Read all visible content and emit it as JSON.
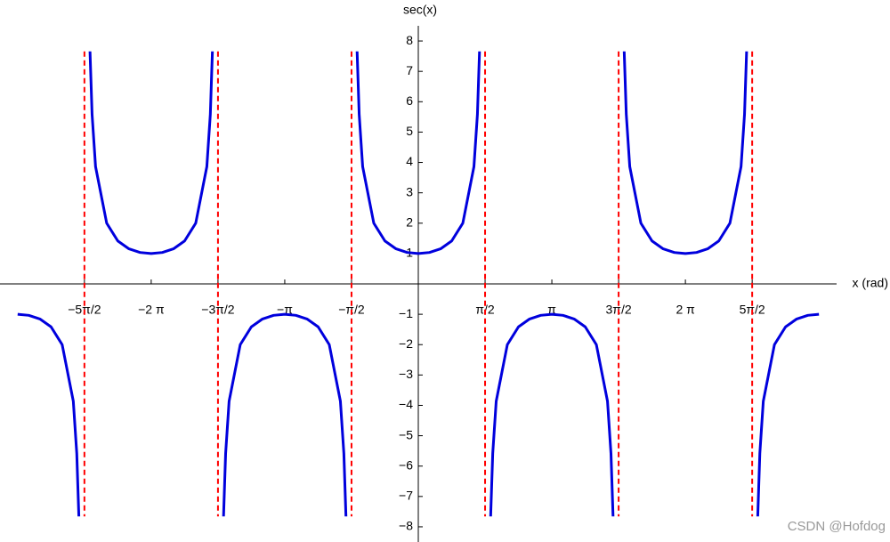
{
  "chart_data": {
    "type": "line",
    "x_label": "x (rad)",
    "y_label": "sec(x)",
    "watermark": "CSDN @Hofdog",
    "xlim": [
      -9.84,
      9.84
    ],
    "ylim": [
      -8.5,
      8.5
    ],
    "xticks": [
      {
        "value": -7.854,
        "label": "−5π/2"
      },
      {
        "value": -6.2832,
        "label": "−2 π"
      },
      {
        "value": -4.7124,
        "label": "−3π/2"
      },
      {
        "value": -3.1416,
        "label": "−π"
      },
      {
        "value": -1.5708,
        "label": "−π/2"
      },
      {
        "value": 1.5708,
        "label": "π/2"
      },
      {
        "value": 3.1416,
        "label": "π"
      },
      {
        "value": 4.7124,
        "label": "3π/2"
      },
      {
        "value": 6.2832,
        "label": "2 π"
      },
      {
        "value": 7.854,
        "label": "5π/2"
      }
    ],
    "yticks": [
      {
        "value": -8,
        "label": "−8"
      },
      {
        "value": -7,
        "label": "−7"
      },
      {
        "value": -6,
        "label": "−6"
      },
      {
        "value": -5,
        "label": "−5"
      },
      {
        "value": -4,
        "label": "−4"
      },
      {
        "value": -3,
        "label": "−3"
      },
      {
        "value": -2,
        "label": "−2"
      },
      {
        "value": -1,
        "label": "−1"
      },
      1,
      2,
      3,
      4,
      5,
      6,
      7,
      8
    ],
    "asymptotes": {
      "x": [
        -7.854,
        -4.7124,
        -1.5708,
        1.5708,
        4.7124,
        7.854
      ],
      "color": "#ff0000"
    },
    "x": [
      -9.4248,
      -9.163,
      -8.9012,
      -8.6394,
      -8.3776,
      -8.1158,
      -8.034,
      -7.985,
      -7.854,
      -7.723,
      -7.674,
      -7.5922,
      -7.3304,
      -7.0686,
      -6.8068,
      -6.545,
      -6.2832,
      -6.0214,
      -5.7596,
      -5.4978,
      -5.236,
      -4.9742,
      -4.8924,
      -4.8434,
      -4.7124,
      -4.5814,
      -4.5324,
      -4.4506,
      -4.1888,
      -3.927,
      -3.6652,
      -3.4034,
      -3.1416,
      -2.8798,
      -2.618,
      -2.3562,
      -2.0944,
      -1.8326,
      -1.7508,
      -1.7018,
      -1.5708,
      -1.4398,
      -1.3908,
      -1.309,
      -1.0472,
      -0.7854,
      -0.5236,
      -0.2618,
      0,
      0.2618,
      0.5236,
      0.7854,
      1.0472,
      1.309,
      1.3908,
      1.4398,
      1.5708,
      1.7018,
      1.7508,
      1.8326,
      2.0944,
      2.3562,
      2.618,
      2.8798,
      3.1416,
      3.4034,
      3.6652,
      3.927,
      4.1888,
      4.4506,
      4.5324,
      4.5814,
      4.7124,
      4.8434,
      4.8924,
      4.9742,
      5.236,
      5.4978,
      5.7596,
      6.0214,
      6.2832,
      6.545,
      6.8068,
      7.0686,
      7.3304,
      7.5922,
      7.674,
      7.723,
      7.854,
      7.985,
      8.034,
      8.1158,
      8.3776,
      8.6394,
      8.9012,
      9.163,
      9.4248
    ],
    "series": [
      {
        "name": "sec(x)",
        "color": "#0000dd",
        "values": [
          -1,
          -1.035,
          -1.155,
          -1.414,
          -2,
          -3.864,
          -5.586,
          -7.657,
          null,
          7.657,
          5.586,
          3.864,
          2,
          1.414,
          1.155,
          1.035,
          1,
          1.035,
          1.155,
          1.414,
          2,
          3.864,
          5.586,
          7.657,
          null,
          -7.657,
          -5.586,
          -3.864,
          -2,
          -1.414,
          -1.155,
          -1.035,
          -1,
          -1.035,
          -1.155,
          -1.414,
          -2,
          -3.864,
          -5.586,
          -7.657,
          null,
          7.657,
          5.586,
          3.864,
          2,
          1.414,
          1.155,
          1.035,
          1,
          1.035,
          1.155,
          1.414,
          2,
          3.864,
          5.586,
          7.657,
          null,
          -7.657,
          -5.586,
          -3.864,
          -2,
          -1.414,
          -1.155,
          -1.035,
          -1,
          -1.035,
          -1.155,
          -1.414,
          -2,
          -3.864,
          -5.586,
          -7.657,
          null,
          7.657,
          5.586,
          3.864,
          2,
          1.414,
          1.155,
          1.035,
          1,
          1.035,
          1.155,
          1.414,
          2,
          3.864,
          5.586,
          7.657,
          null,
          -7.657,
          -5.586,
          -3.864,
          -2,
          -1.414,
          -1.155,
          -1.035,
          -1
        ]
      }
    ]
  }
}
